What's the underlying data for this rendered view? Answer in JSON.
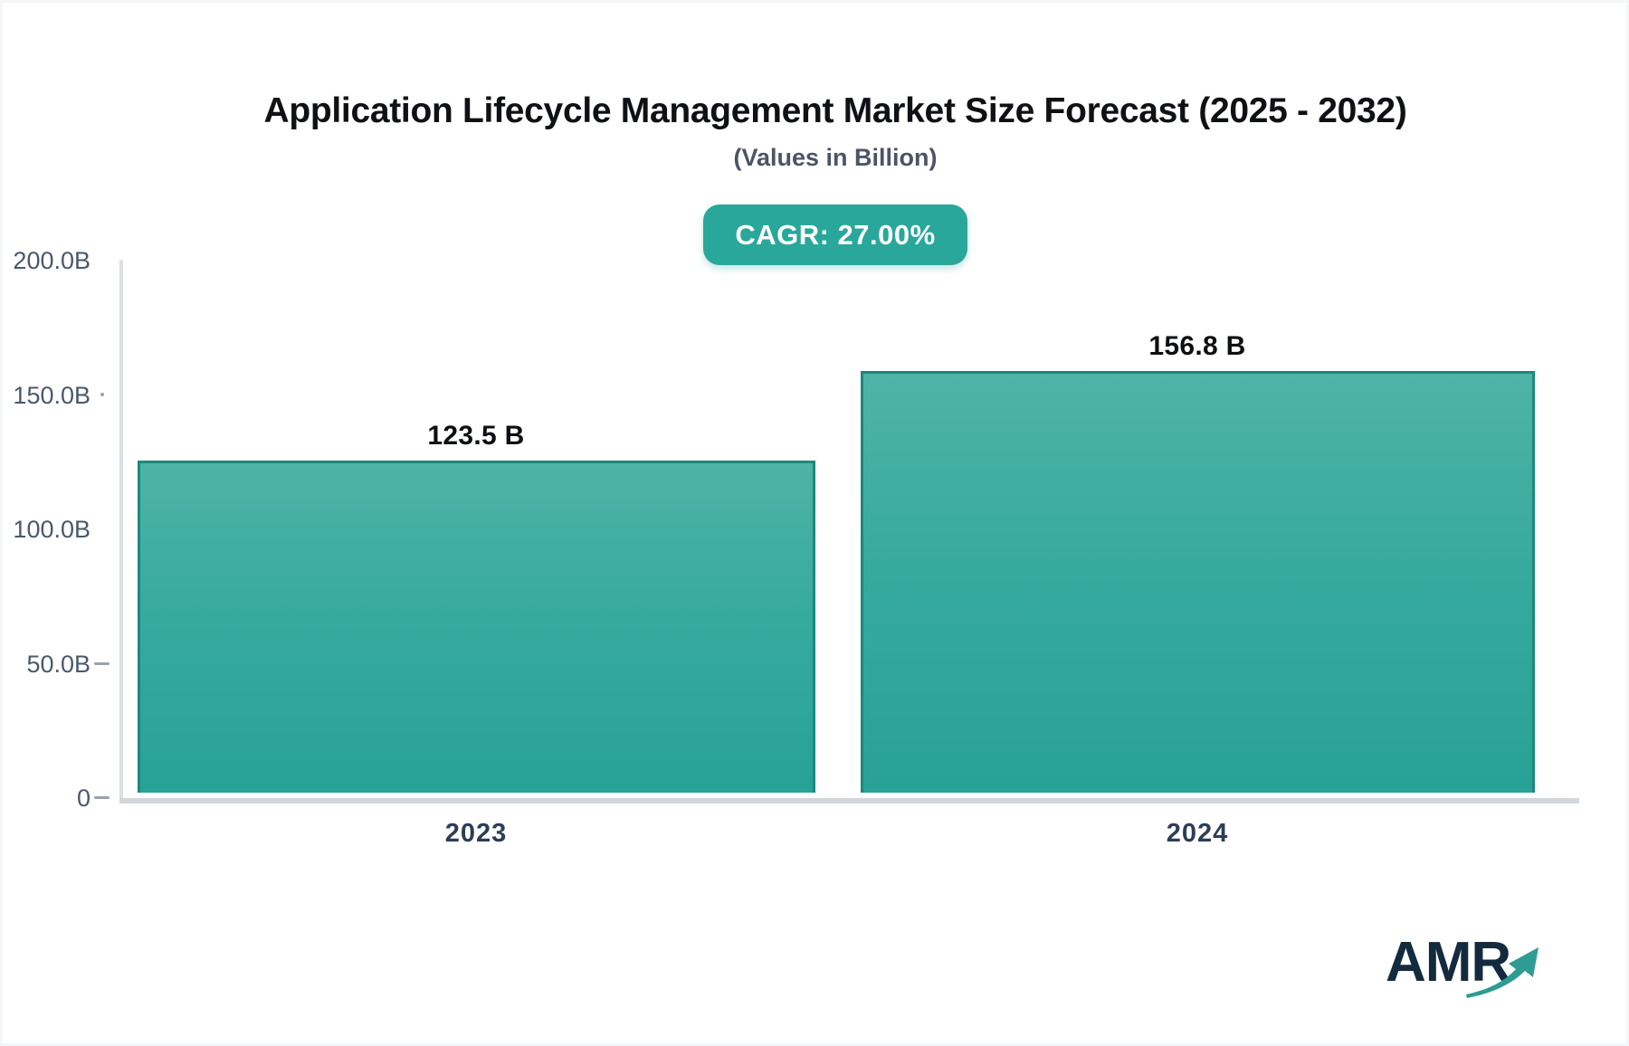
{
  "meta": {
    "accent_color": "#2aa79b",
    "bar_gradient_top": "#4fb3a9",
    "bar_gradient_bottom": "#28a296",
    "bar_border_color": "#1e887d",
    "axis_line_color": "#d3d7dd",
    "axis_label_color": "#4b586c",
    "background": "#ffffff"
  },
  "header": {
    "title": "Application Lifecycle Management Market Size Forecast (2025 - 2032)",
    "subtitle": "(Values in Billion)",
    "cagr_label": "CAGR: 27.00%"
  },
  "chart_data": {
    "type": "bar",
    "title": "Application Lifecycle Management Market Size Forecast (2025 - 2032)",
    "subtitle": "(Values in Billion)",
    "cagr_percent": "27.00%",
    "categories": [
      "2023",
      "2024"
    ],
    "values": [
      123.5,
      156.8
    ],
    "value_labels": [
      "123.5 B",
      "156.8 B"
    ],
    "unit": "Billion",
    "xlabel": "",
    "ylabel": "",
    "ylim": [
      0,
      200
    ],
    "y_ticks": [
      "200.0B",
      "150.0B",
      "100.0B",
      "50.0B",
      "0"
    ],
    "grid": false,
    "legend_position": "none"
  },
  "logo": {
    "text": "AMR",
    "text_color": "#142a3e",
    "arrow_color": "#2e9c92"
  }
}
